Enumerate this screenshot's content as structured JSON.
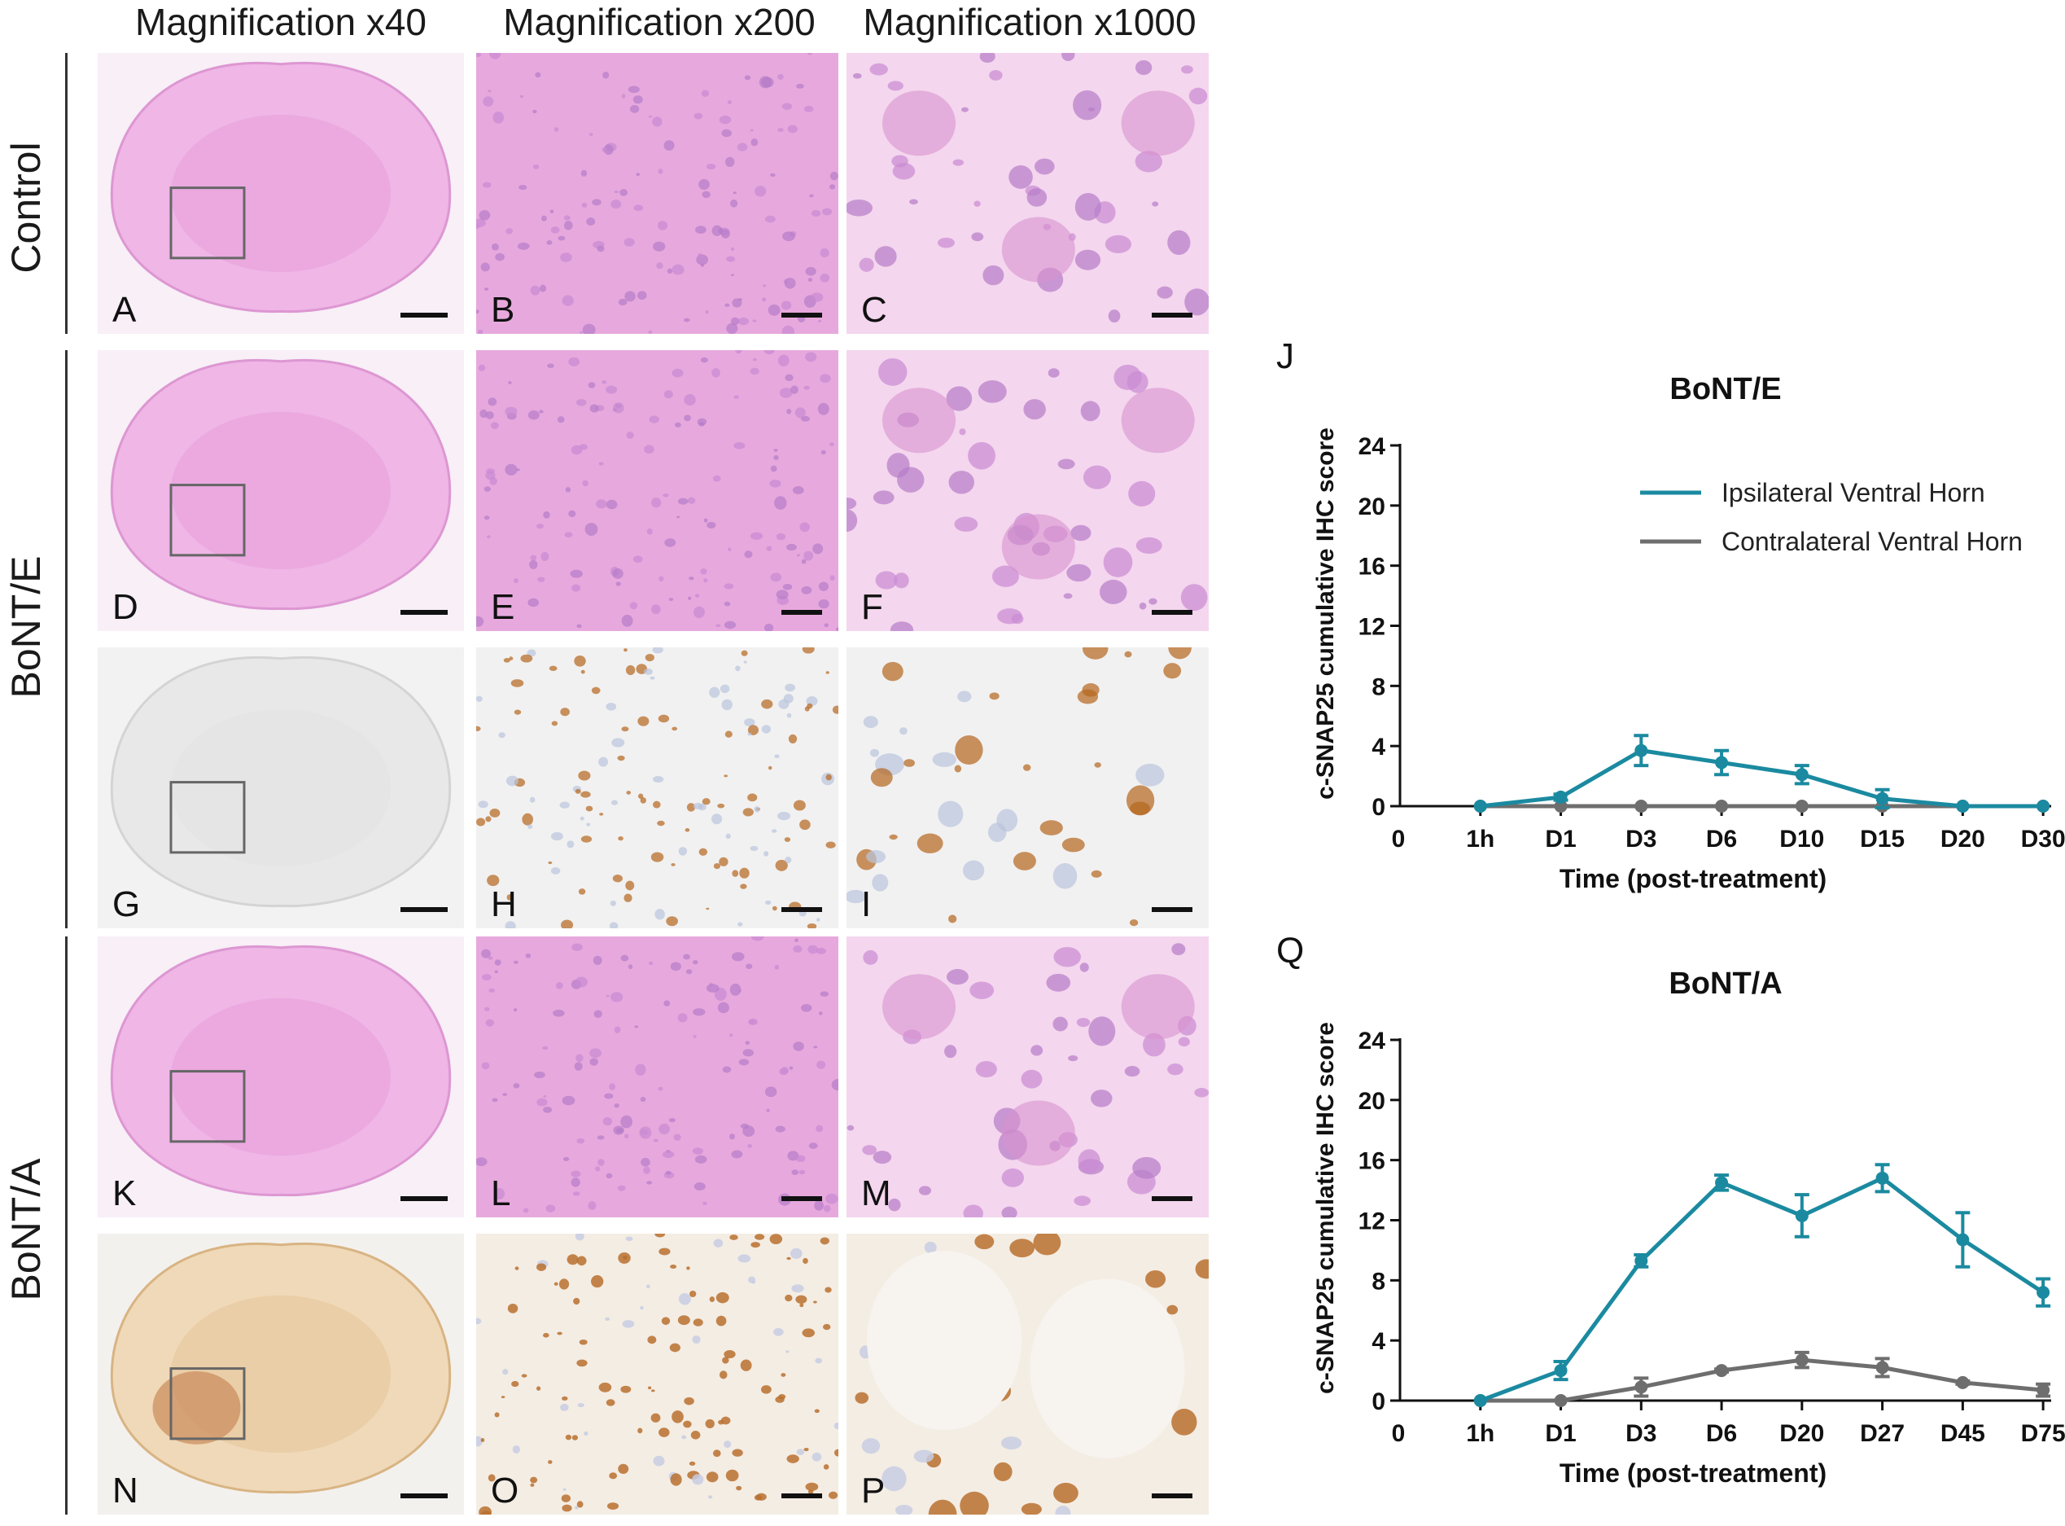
{
  "column_headers": [
    "Magnification x40",
    "Magnification x200",
    "Magnification x1000"
  ],
  "row_labels": {
    "control": "Control",
    "bonte": "BoNT/E",
    "bonta": "BoNT/A"
  },
  "panel_letters": [
    "A",
    "B",
    "C",
    "D",
    "E",
    "F",
    "G",
    "H",
    "I",
    "K",
    "L",
    "M",
    "N",
    "O",
    "P"
  ],
  "colors": {
    "he_pink": "#e9a8dd",
    "he_light": "#f4d6ee",
    "ihc_bg": "#f1f1f1",
    "ihc_brown": "#b5651d",
    "ipsi": "#1b8aa0",
    "contra": "#6e6e6e"
  },
  "chart_data": [
    {
      "type": "line",
      "panel_label": "J",
      "title": "BoNT/E",
      "xlabel": "Time (post-treatment)",
      "ylabel": "c-SNAP25 cumulative IHC score",
      "ylim": [
        0,
        24
      ],
      "yticks": [
        "0",
        "4",
        "8",
        "12",
        "16",
        "20",
        "24"
      ],
      "x_zero_label": "0",
      "categories": [
        "1h",
        "D1",
        "D3",
        "D6",
        "D10",
        "D15",
        "D20",
        "D30"
      ],
      "legend": "upper-right",
      "series": [
        {
          "name": "Ipsilateral Ventral Horn",
          "color": "#1b8aa0",
          "values": [
            0,
            0.6,
            3.7,
            2.9,
            2.1,
            0.5,
            0,
            0
          ],
          "errors": [
            0,
            0.2,
            1.0,
            0.8,
            0.6,
            0.6,
            0,
            0
          ]
        },
        {
          "name": "Contralateral Ventral Horn",
          "color": "#6e6e6e",
          "values": [
            0,
            0,
            0,
            0,
            0,
            0,
            0,
            0
          ],
          "errors": [
            0,
            0,
            0,
            0,
            0,
            0,
            0,
            0
          ]
        }
      ]
    },
    {
      "type": "line",
      "panel_label": "Q",
      "title": "BoNT/A",
      "xlabel": "Time (post-treatment)",
      "ylabel": "c-SNAP25 cumulative IHC score",
      "ylim": [
        0,
        24
      ],
      "yticks": [
        "0",
        "4",
        "8",
        "12",
        "16",
        "20",
        "24"
      ],
      "x_zero_label": "0",
      "categories": [
        "1h",
        "D1",
        "D3",
        "D6",
        "D20",
        "D27",
        "D45",
        "D75"
      ],
      "series": [
        {
          "name": "Ipsilateral Ventral Horn",
          "color": "#1b8aa0",
          "values": [
            0,
            2.0,
            9.3,
            14.5,
            12.3,
            14.8,
            10.7,
            7.2
          ],
          "errors": [
            0,
            0.6,
            0.4,
            0.5,
            1.4,
            0.9,
            1.8,
            0.9
          ]
        },
        {
          "name": "Contralateral Ventral Horn",
          "color": "#6e6e6e",
          "values": [
            0,
            0,
            0.9,
            2.0,
            2.7,
            2.2,
            1.2,
            0.7
          ],
          "errors": [
            0,
            0,
            0.6,
            0.1,
            0.5,
            0.6,
            0.1,
            0.4
          ]
        }
      ]
    }
  ]
}
